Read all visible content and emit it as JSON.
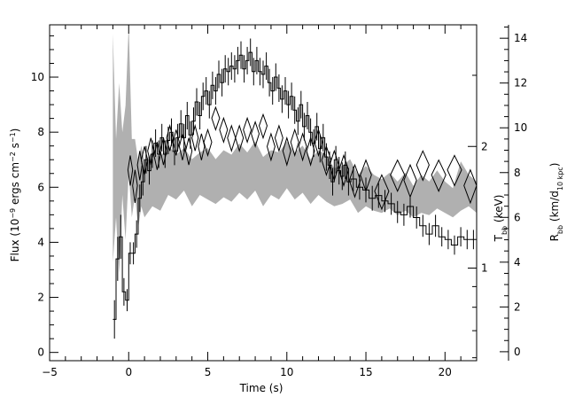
{
  "chart_data": {
    "type": "line",
    "title": "",
    "xlabel": "Time (s)",
    "ylabel_left": "Flux (10^-9 ergs cm^-2 s^-1)",
    "ylabel_right_inner": "T_bb (keV)",
    "ylabel_right_outer": "R_bb (km/d_10 kpc)",
    "xlim": [
      -5,
      22
    ],
    "ylim_left": [
      -0.3,
      11.9
    ],
    "ylim_right_inner_log": [
      0.59,
      4.0
    ],
    "ylim_right_outer": [
      -0.4,
      14.6
    ],
    "x_ticks": [
      -5,
      0,
      5,
      10,
      15,
      20
    ],
    "x_tick_labels": [
      "−5",
      "0",
      "5",
      "10",
      "15",
      "20"
    ],
    "y_left_ticks": [
      0,
      2,
      4,
      6,
      8,
      10
    ],
    "y_left_tick_labels": [
      "0",
      "2",
      "4",
      "6",
      "8",
      "10"
    ],
    "y_right_inner_ticks": [
      1,
      2
    ],
    "y_right_inner_tick_labels": [
      "1",
      "2"
    ],
    "y_right_outer_ticks": [
      0,
      2,
      4,
      6,
      8,
      10,
      12,
      14
    ],
    "y_right_outer_tick_labels": [
      "0",
      "2",
      "4",
      "6",
      "8",
      "10",
      "12",
      "14"
    ],
    "grid": false,
    "legend": "none",
    "colors": {
      "flux": "#000000",
      "temperature": "#000000",
      "radius_band": "#b0b0b0"
    },
    "series": [
      {
        "role": "flux",
        "style": "histogram-with-error-bars",
        "x": [
          -0.9,
          -0.7,
          -0.5,
          -0.3,
          -0.1,
          0.1,
          0.3,
          0.5,
          0.7,
          0.9,
          1.1,
          1.3,
          1.5,
          1.7,
          1.9,
          2.1,
          2.3,
          2.5,
          2.7,
          2.9,
          3.1,
          3.3,
          3.5,
          3.7,
          3.9,
          4.1,
          4.3,
          4.5,
          4.7,
          4.9,
          5.1,
          5.3,
          5.5,
          5.7,
          5.9,
          6.1,
          6.3,
          6.5,
          6.7,
          6.9,
          7.1,
          7.3,
          7.5,
          7.7,
          7.9,
          8.1,
          8.3,
          8.5,
          8.7,
          8.9,
          9.1,
          9.3,
          9.5,
          9.7,
          9.9,
          10.1,
          10.3,
          10.5,
          10.7,
          10.9,
          11.1,
          11.3,
          11.5,
          11.7,
          11.9,
          12.1,
          12.3,
          12.5,
          12.7,
          12.9,
          13.1,
          13.3,
          13.5,
          13.7,
          13.9,
          14.2,
          14.6,
          15.0,
          15.4,
          15.8,
          16.2,
          16.6,
          17.0,
          17.4,
          17.8,
          18.2,
          18.6,
          19.0,
          19.4,
          19.8,
          20.2,
          20.6,
          21.0,
          21.4,
          21.8
        ],
        "y": [
          1.2,
          3.4,
          4.2,
          2.2,
          1.9,
          3.6,
          3.6,
          4.3,
          5.6,
          6.2,
          7.0,
          6.6,
          7.2,
          7.6,
          7.2,
          7.8,
          7.2,
          7.7,
          8.0,
          7.3,
          7.8,
          8.3,
          7.8,
          8.6,
          7.9,
          8.4,
          9.1,
          8.6,
          9.3,
          9.5,
          9.0,
          9.7,
          9.5,
          10.1,
          9.8,
          10.3,
          10.2,
          10.4,
          10.3,
          10.6,
          10.8,
          10.3,
          10.6,
          10.9,
          10.2,
          10.6,
          10.2,
          10.1,
          10.4,
          9.8,
          9.5,
          10.0,
          9.6,
          9.2,
          9.5,
          9.0,
          9.3,
          8.8,
          8.4,
          9.0,
          8.2,
          8.6,
          8.0,
          7.6,
          8.2,
          7.4,
          7.8,
          7.1,
          6.8,
          6.2,
          7.0,
          6.6,
          6.4,
          6.8,
          6.2,
          6.3,
          6.0,
          5.9,
          5.6,
          5.7,
          5.5,
          5.4,
          5.1,
          5.0,
          5.3,
          4.9,
          4.6,
          4.3,
          4.6,
          4.2,
          4.1,
          3.9,
          4.2,
          4.1,
          4.1
        ],
        "yerr": [
          0.7,
          0.8,
          0.8,
          0.5,
          0.4,
          0.4,
          0.4,
          0.5,
          0.5,
          0.5,
          0.5,
          0.5,
          0.5,
          0.5,
          0.5,
          0.5,
          0.5,
          0.5,
          0.5,
          0.5,
          0.5,
          0.5,
          0.5,
          0.5,
          0.5,
          0.5,
          0.5,
          0.5,
          0.5,
          0.5,
          0.5,
          0.5,
          0.5,
          0.5,
          0.5,
          0.5,
          0.5,
          0.5,
          0.5,
          0.5,
          0.5,
          0.5,
          0.5,
          0.5,
          0.5,
          0.5,
          0.5,
          0.5,
          0.5,
          0.5,
          0.5,
          0.5,
          0.5,
          0.5,
          0.5,
          0.5,
          0.5,
          0.5,
          0.5,
          0.5,
          0.5,
          0.5,
          0.5,
          0.5,
          0.5,
          0.5,
          0.5,
          0.5,
          0.5,
          0.5,
          0.5,
          0.5,
          0.5,
          0.5,
          0.5,
          0.45,
          0.45,
          0.45,
          0.45,
          0.45,
          0.4,
          0.4,
          0.4,
          0.4,
          0.4,
          0.4,
          0.4,
          0.4,
          0.4,
          0.35,
          0.35,
          0.35,
          0.35,
          0.35,
          0.35
        ]
      },
      {
        "role": "temperature",
        "style": "diamonds",
        "axis": "right_inner",
        "x": [
          0.1,
          0.4,
          0.7,
          1.0,
          1.4,
          1.8,
          2.2,
          2.6,
          3.0,
          3.4,
          3.8,
          4.2,
          4.6,
          5.0,
          5.5,
          6.0,
          6.5,
          7.0,
          7.5,
          8.0,
          8.5,
          9.0,
          9.5,
          10.0,
          10.5,
          11.0,
          11.5,
          12.0,
          12.5,
          13.0,
          13.6,
          14.3,
          15.0,
          16.0,
          17.0,
          17.8,
          18.6,
          19.6,
          20.6,
          21.6
        ],
        "y": [
          1.75,
          1.6,
          1.8,
          1.85,
          1.95,
          1.9,
          1.95,
          2.1,
          2.05,
          2.0,
          1.95,
          2.1,
          2.0,
          2.05,
          2.35,
          2.2,
          2.1,
          2.1,
          2.2,
          2.15,
          2.25,
          2.0,
          2.1,
          1.95,
          2.05,
          2.0,
          1.95,
          2.05,
          1.85,
          1.8,
          1.75,
          1.65,
          1.7,
          1.55,
          1.7,
          1.65,
          1.8,
          1.7,
          1.75,
          1.6
        ],
        "half_width_s": [
          0.15,
          0.15,
          0.15,
          0.2,
          0.2,
          0.2,
          0.2,
          0.2,
          0.2,
          0.2,
          0.2,
          0.2,
          0.2,
          0.25,
          0.25,
          0.25,
          0.25,
          0.25,
          0.25,
          0.25,
          0.25,
          0.25,
          0.25,
          0.25,
          0.25,
          0.25,
          0.25,
          0.25,
          0.3,
          0.3,
          0.3,
          0.35,
          0.35,
          0.45,
          0.45,
          0.4,
          0.4,
          0.45,
          0.45,
          0.4
        ],
        "half_height_kev": [
          0.15,
          0.15,
          0.15,
          0.15,
          0.15,
          0.15,
          0.15,
          0.15,
          0.15,
          0.15,
          0.15,
          0.15,
          0.15,
          0.15,
          0.15,
          0.15,
          0.15,
          0.15,
          0.15,
          0.15,
          0.15,
          0.15,
          0.15,
          0.15,
          0.15,
          0.15,
          0.15,
          0.15,
          0.15,
          0.15,
          0.15,
          0.15,
          0.15,
          0.15,
          0.15,
          0.15,
          0.15,
          0.15,
          0.15,
          0.15
        ]
      },
      {
        "role": "radius_band",
        "style": "filled-band",
        "axis": "right_outer",
        "x": [
          -1.0,
          -0.8,
          -0.6,
          -0.4,
          -0.2,
          0.0,
          0.2,
          0.4,
          0.6,
          0.8,
          1.0,
          1.5,
          2.0,
          2.5,
          3.0,
          3.5,
          4.0,
          4.5,
          5.0,
          5.5,
          6.0,
          6.5,
          7.0,
          7.5,
          8.0,
          8.5,
          9.0,
          9.5,
          10.0,
          10.5,
          11.0,
          11.5,
          12.0,
          12.5,
          13.0,
          13.5,
          14.0,
          14.5,
          15.0,
          15.5,
          16.0,
          16.5,
          17.0,
          17.5,
          18.0,
          18.5,
          19.0,
          19.5,
          20.0,
          20.5,
          21.0,
          21.5,
          22.0
        ],
        "low": [
          4.0,
          6.0,
          3.5,
          7.0,
          5.0,
          8.0,
          6.0,
          7.0,
          5.5,
          6.5,
          6.0,
          6.5,
          6.3,
          7.0,
          6.8,
          7.2,
          6.5,
          7.0,
          6.8,
          6.6,
          6.9,
          6.7,
          7.1,
          6.8,
          7.2,
          6.5,
          7.0,
          6.8,
          7.3,
          6.8,
          7.1,
          6.6,
          7.0,
          6.7,
          6.5,
          6.6,
          6.8,
          6.2,
          6.5,
          6.3,
          6.2,
          6.4,
          6.1,
          6.3,
          6.0,
          6.2,
          6.1,
          6.4,
          6.2,
          6.0,
          6.3,
          6.5,
          6.2
        ],
        "high": [
          14.2,
          9.5,
          12.0,
          9.8,
          11.0,
          14.6,
          9.5,
          9.5,
          8.5,
          9.2,
          8.5,
          8.9,
          8.7,
          9.2,
          8.8,
          9.1,
          8.6,
          8.9,
          9.1,
          8.6,
          9.0,
          8.8,
          9.3,
          8.9,
          9.4,
          8.7,
          9.0,
          8.9,
          9.4,
          8.9,
          9.2,
          8.6,
          9.0,
          8.8,
          8.2,
          8.3,
          8.6,
          7.9,
          8.3,
          7.9,
          7.7,
          8.0,
          7.6,
          8.0,
          7.4,
          7.9,
          7.6,
          8.1,
          7.6,
          7.3,
          8.5,
          7.9,
          7.6
        ]
      }
    ]
  }
}
